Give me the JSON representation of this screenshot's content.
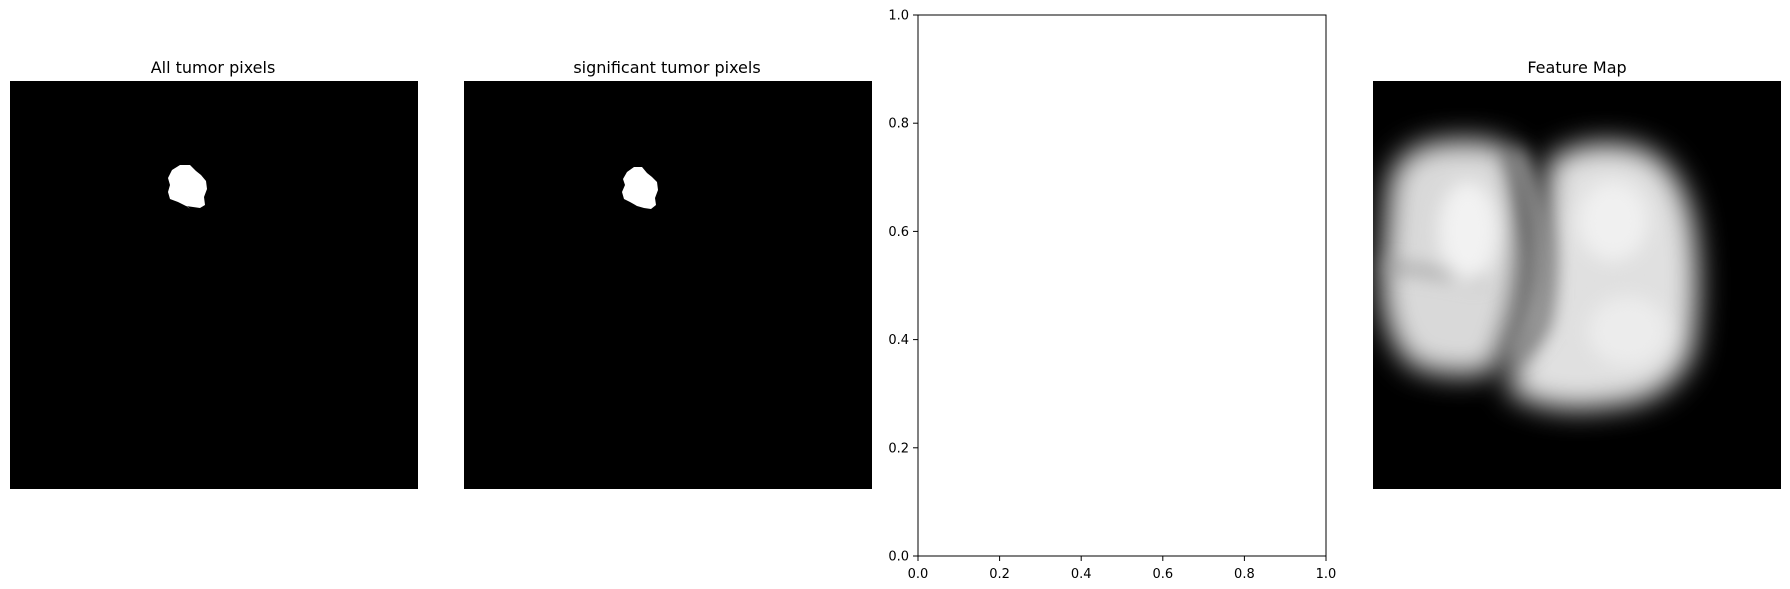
{
  "chart_data": [
    {
      "type": "image",
      "title": "All tumor pixels",
      "colormap": "gray",
      "content": "binary mask: single white blob on black background"
    },
    {
      "type": "image",
      "title": "significant tumor pixels",
      "colormap": "gray",
      "content": "binary mask: single white blob on black background"
    },
    {
      "type": "scatter",
      "title": "",
      "xlabel": "",
      "ylabel": "",
      "xlim": [
        0.0,
        1.0
      ],
      "ylim": [
        0.0,
        1.0
      ],
      "x_ticks": [
        "0.0",
        "0.2",
        "0.4",
        "0.6",
        "0.8",
        "1.0"
      ],
      "y_ticks": [
        "0.0",
        "0.2",
        "0.4",
        "0.6",
        "0.8",
        "1.0"
      ],
      "series": [],
      "grid": false
    },
    {
      "type": "image",
      "title": "Feature Map",
      "colormap": "gray",
      "content": "blurred grayscale feature map of two lung-shaped regions"
    }
  ]
}
